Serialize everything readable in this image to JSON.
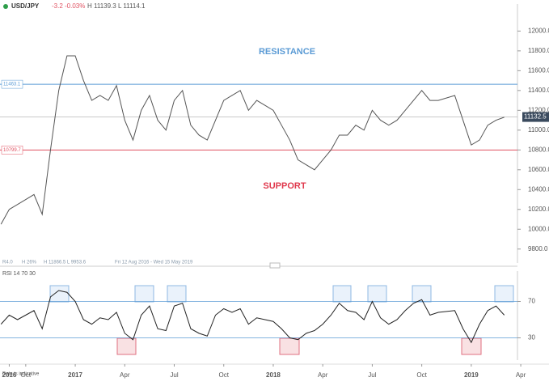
{
  "header": {
    "symbol": "USD/JPY",
    "change": "-3.2",
    "change_pct": "-0.03%",
    "high_low": "H 11139.3 L 11114.1"
  },
  "footer": {
    "note": "Data is indicative"
  },
  "chart_data": [
    {
      "type": "line",
      "annotations": [
        "RESISTANCE",
        "SUPPORT"
      ],
      "info": [
        "R4.0",
        "H 26%",
        "H 11866.5 L 9953.6",
        "Fri 12 Aug 2016 - Wed 15 May 2019"
      ],
      "x": [
        7.5,
        8,
        8.5,
        9,
        9.5,
        10,
        10.5,
        11,
        11.5,
        12,
        12.5,
        13,
        13.5,
        14,
        14.5,
        15,
        15.5,
        16,
        16.5,
        17,
        17.5,
        18,
        18.5,
        19,
        19.5,
        20,
        20.5,
        21,
        21.5,
        22,
        22.5,
        23,
        23.5,
        24,
        24.5,
        25,
        25.5,
        26,
        26.5,
        27,
        27.5,
        28,
        28.5,
        29,
        29.5,
        30,
        30.5,
        31,
        31.5,
        32,
        32.5,
        33,
        33.5,
        34,
        35,
        35.5,
        36,
        36.5,
        37,
        37.5,
        38
      ],
      "series": [
        {
          "color": "#555555",
          "values": [
            10050,
            10200,
            10250,
            10300,
            10350,
            10150,
            10800,
            11400,
            11750,
            11750,
            11500,
            11300,
            11350,
            11300,
            11450,
            11100,
            10900,
            11200,
            11350,
            11100,
            11000,
            11300,
            11400,
            11050,
            10950,
            10900,
            11100,
            11300,
            11350,
            11400,
            11200,
            11300,
            11250,
            11200,
            11050,
            10900,
            10700,
            10650,
            10600,
            10700,
            10800,
            10950,
            10950,
            11050,
            11000,
            11200,
            11100,
            11050,
            11100,
            11200,
            11300,
            11400,
            11300,
            11300,
            11350,
            11100,
            10850,
            10900,
            11050,
            11100,
            11130
          ]
        }
      ],
      "levels": [
        {
          "value": 11463.1,
          "color": "#5b9bd5"
        },
        {
          "value": 10799.7,
          "color": "#e05060"
        }
      ],
      "last_price": 11132.5,
      "xlim": [
        7.44,
        38.8
      ],
      "ylim": [
        9700,
        12150
      ],
      "yticks": [
        {
          "value": 9800,
          "label": "9800.0"
        },
        {
          "value": 10000,
          "label": "10000.0"
        },
        {
          "value": 10200,
          "label": "10200.0"
        },
        {
          "value": 10400,
          "label": "10400.0"
        },
        {
          "value": 10600,
          "label": "10600.0"
        },
        {
          "value": 10800,
          "label": "10800.0"
        },
        {
          "value": 11000,
          "label": "11000.0"
        },
        {
          "value": 11200,
          "label": "11200.0"
        },
        {
          "value": 11400,
          "label": "11400.0"
        },
        {
          "value": 11600,
          "label": "11600.0"
        },
        {
          "value": 11800,
          "label": "11800.0"
        },
        {
          "value": 12000,
          "label": "12000.0"
        }
      ]
    },
    {
      "type": "line",
      "title": "RSI 14 70 30",
      "x": [
        7.5,
        8,
        8.5,
        9,
        9.5,
        10,
        10.5,
        11,
        11.5,
        12,
        12.5,
        13,
        13.5,
        14,
        14.5,
        15,
        15.5,
        16,
        16.5,
        17,
        17.5,
        18,
        18.5,
        19,
        19.5,
        20,
        20.5,
        21,
        21.5,
        22,
        22.5,
        23,
        23.5,
        24,
        24.5,
        25,
        25.5,
        26,
        26.5,
        27,
        27.5,
        28,
        28.5,
        29,
        29.5,
        30,
        30.5,
        31,
        31.5,
        32,
        32.5,
        33,
        33.5,
        34,
        35,
        35.5,
        36,
        36.5,
        37,
        37.5,
        38
      ],
      "series": [
        {
          "color": "#222222",
          "values": [
            45,
            55,
            50,
            55,
            60,
            40,
            75,
            82,
            80,
            70,
            50,
            45,
            52,
            50,
            58,
            35,
            28,
            55,
            65,
            40,
            38,
            65,
            68,
            40,
            35,
            32,
            55,
            62,
            58,
            62,
            45,
            52,
            50,
            48,
            40,
            30,
            28,
            35,
            38,
            45,
            55,
            68,
            60,
            58,
            50,
            70,
            52,
            45,
            50,
            60,
            68,
            72,
            55,
            58,
            60,
            40,
            25,
            45,
            60,
            65,
            55
          ]
        }
      ],
      "xlim": [
        7.44,
        38.8
      ],
      "ylim": [
        10,
        90
      ],
      "yticks": [
        30,
        70
      ],
      "xticks": [
        {
          "value": 8,
          "label": "2016"
        },
        {
          "value": 9,
          "label": "Oct"
        },
        {
          "value": 12,
          "label": "2017"
        },
        {
          "value": 15,
          "label": "Apr"
        },
        {
          "value": 18,
          "label": "Jul"
        },
        {
          "value": 21,
          "label": "Oct"
        },
        {
          "value": 24,
          "label": "2018"
        },
        {
          "value": 27,
          "label": "Apr"
        },
        {
          "value": 30,
          "label": "Jul"
        },
        {
          "value": 33,
          "label": "Oct"
        },
        {
          "value": 36,
          "label": "2019"
        },
        {
          "value": 39,
          "label": "Apr"
        }
      ]
    }
  ]
}
